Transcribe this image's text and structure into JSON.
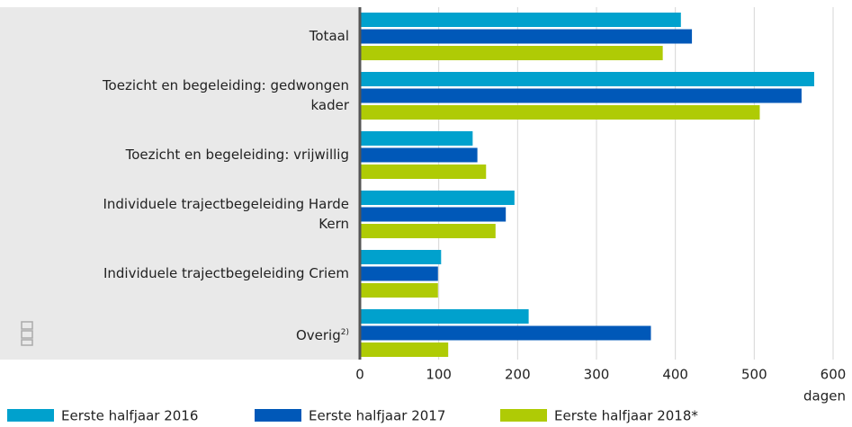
{
  "chart_data": {
    "type": "hbar",
    "categories": [
      "Totaal",
      "Toezicht en begeleiding: gedwongen\nkader",
      "Toezicht en begeleiding: vrijwillig",
      "Individuele trajectbegeleiding Harde\nKern",
      "Individuele trajectbegeleiding Criem",
      "Overig"
    ],
    "category_notes": [
      null,
      null,
      null,
      null,
      null,
      "2)"
    ],
    "series": [
      {
        "name": "Eerste halfjaar 2016",
        "color": "#00a1cd",
        "values": [
          407,
          576,
          143,
          196,
          103,
          214
        ]
      },
      {
        "name": "Eerste halfjaar 2017",
        "color": "#0058b8",
        "values": [
          421,
          560,
          149,
          185,
          99,
          369
        ]
      },
      {
        "name": "Eerste halfjaar 2018*",
        "color": "#afcb05",
        "values": [
          384,
          507,
          160,
          172,
          99,
          112
        ]
      }
    ],
    "xlim": [
      0,
      600
    ],
    "xticks": [
      0,
      100,
      200,
      300,
      400,
      500,
      600
    ],
    "x_label": "dagen",
    "grid": true,
    "legend": "bottom"
  }
}
